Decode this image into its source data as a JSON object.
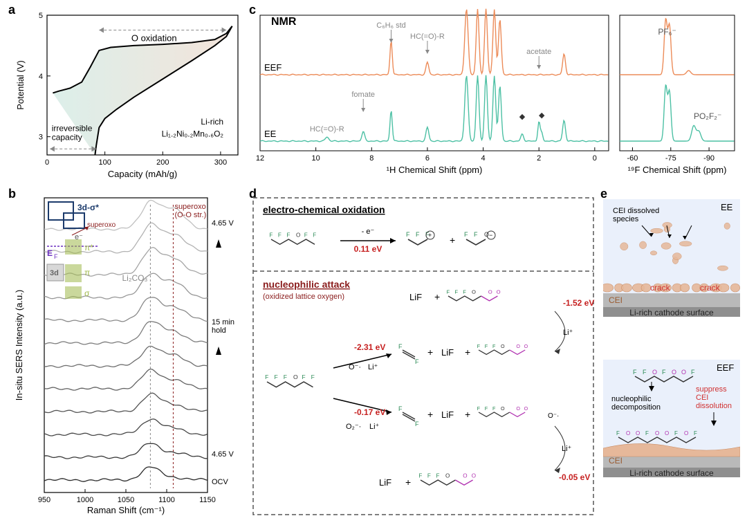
{
  "labels": {
    "a": "a",
    "b": "b",
    "c": "c",
    "d": "d",
    "e": "e"
  },
  "a": {
    "xlabel": "Capacity (mAh/g)",
    "ylabel": "Potential (V)",
    "xticks": [
      0,
      100,
      200,
      300
    ],
    "yticks": [
      3,
      4,
      5
    ],
    "xlim": [
      0,
      330
    ],
    "ylim": [
      2.7,
      5.0
    ],
    "material": "Li₁.₂Ni₀.₂Mn₀.₆O₂",
    "prefix": "Li-rich",
    "annot1": "O oxidation",
    "annot2": "irreversible\ncapacity",
    "fill_gradient": [
      "#d6ece6",
      "#f0dfd4"
    ],
    "curve_color": "#000",
    "arrow_color": "#888",
    "charge": [
      [
        10,
        3.72
      ],
      [
        20,
        3.75
      ],
      [
        40,
        3.8
      ],
      [
        60,
        3.9
      ],
      [
        75,
        4.15
      ],
      [
        90,
        4.42
      ],
      [
        110,
        4.47
      ],
      [
        150,
        4.5
      ],
      [
        200,
        4.52
      ],
      [
        250,
        4.55
      ],
      [
        290,
        4.6
      ],
      [
        310,
        4.7
      ],
      [
        320,
        4.82
      ]
    ],
    "discharge": [
      [
        320,
        4.82
      ],
      [
        310,
        4.65
      ],
      [
        290,
        4.5
      ],
      [
        250,
        4.25
      ],
      [
        200,
        3.95
      ],
      [
        150,
        3.65
      ],
      [
        120,
        3.45
      ],
      [
        100,
        3.3
      ],
      [
        90,
        3.15
      ],
      [
        85,
        2.85
      ],
      [
        83,
        2.7
      ]
    ]
  },
  "b": {
    "xlabel": "Raman Shift (cm⁻¹)",
    "ylabel": "In-situ SERS Intensity (a.u.)",
    "xticks": [
      950,
      1000,
      1050,
      1100,
      1150
    ],
    "xlim": [
      950,
      1150
    ],
    "li2co3": "Li₂CO₃",
    "li2co3_x": 1080,
    "superoxo": "superoxo\n(O-O str.)",
    "superoxo_x": 1108,
    "superoxo_color": "#8a1c1c",
    "top_label": "4.65 V",
    "mid_label": "15 min\nhold",
    "bot_label": "4.65 V",
    "ocv": "OCV",
    "trace_gray_start": "#2a2a2a",
    "trace_gray_end": "#c0c0c0",
    "n_traces": 12,
    "legend": {
      "items": [
        "3d-σ*",
        "superoxo",
        "e⁻",
        "E_F",
        "π*",
        "π",
        "σ",
        "3d"
      ],
      "colors": {
        "3d_sigma_star": "#1b3a6b",
        "ef": "#6a2fbf",
        "pi": "#9fb84a",
        "sigma": "#9fb84a",
        "3d": "#888"
      }
    }
  },
  "c": {
    "title": "NMR",
    "left": {
      "xlabel": "¹H Chemical Shift (ppm)",
      "xticks": [
        0,
        2,
        4,
        6,
        8,
        10,
        12
      ],
      "xlim": [
        12,
        -0.5
      ],
      "annots": {
        "std": "C₆H₆ std",
        "formate": "fomate",
        "hcor": "HC(=O)-R",
        "acetate": "acetate",
        "diamond": "◆"
      },
      "eef": "EEF",
      "ee": "EE",
      "eef_color": "#ec8b58",
      "ee_color": "#4cc0a4",
      "annot_color": "#888"
    },
    "right": {
      "xlabel": "¹⁹F Chemical Shift (ppm)",
      "xticks": [
        -60,
        -75,
        -90
      ],
      "xlim": [
        -55,
        -100
      ],
      "pf6": "PF₆⁻",
      "po2f2": "PO₂F₂⁻"
    }
  },
  "d": {
    "title1": "electro-chemical oxidation",
    "title2": "nucleophilic attack",
    "title2_sub": "(oxidized lattice oxygen)",
    "title2_color": "#8a1c1c",
    "border": "#555",
    "minus_e": "- e⁻",
    "energies": {
      "e1": "0.11 eV",
      "e2": "-1.52 eV",
      "e3": "-2.31 eV",
      "e4": "-0.17 eV",
      "e5": "-0.05 eV"
    },
    "energy_color": "#c62020",
    "frag": {
      "LiF": "LiF",
      "Li": "Li⁺",
      "O": "O⁻·",
      "O2": "O₂⁻·",
      "plus": "+"
    },
    "atom_colors": {
      "F": "#4a6",
      "O": "#b030b0",
      "H": "#555"
    }
  },
  "e": {
    "ee_label": "EE",
    "eef_label": "EEF",
    "cei": "CEI",
    "surface": "Li-rich cathode surface",
    "crack": "crack",
    "crack_color": "#d03030",
    "dissolved": "CEI dissolved\nspecies",
    "nucleo": "nucleophilic\ndecomposition",
    "suppress": "suppress\nCEI\ndissolution",
    "suppress_color": "#d03030",
    "bg_top": "#eaf0fb",
    "bg_bottom": "#fff",
    "cei_color": "#e6b89a",
    "cei_dark": "#c98a60",
    "surface_gray": "#b9b9b9"
  }
}
